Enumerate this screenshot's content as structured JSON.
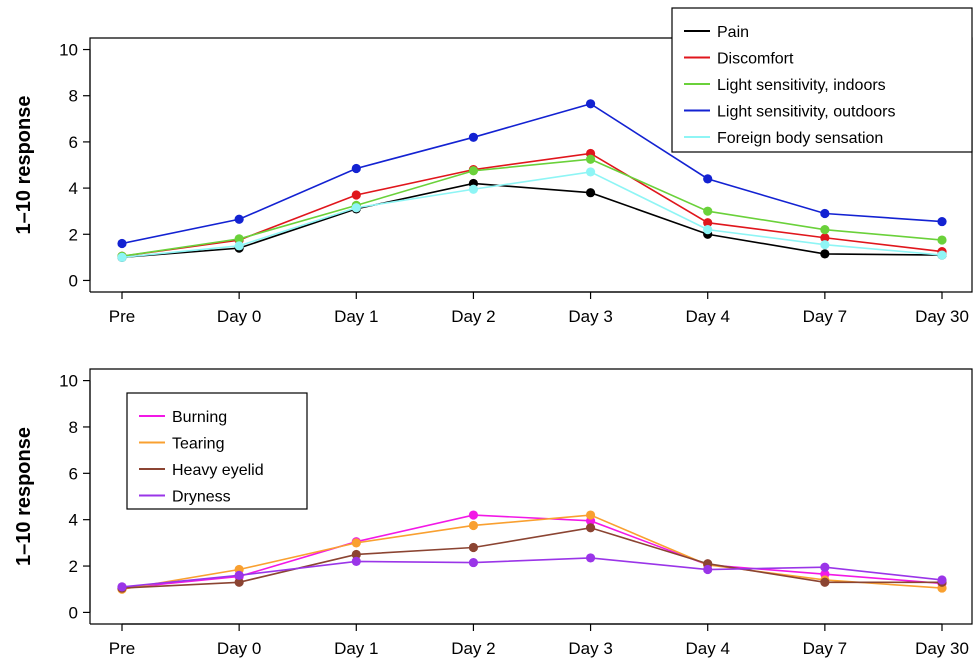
{
  "chart_data": [
    {
      "type": "line",
      "title": "",
      "xlabel": "",
      "ylabel": "1–10 response",
      "categories": [
        "Pre",
        "Day 0",
        "Day 1",
        "Day 2",
        "Day 3",
        "Day 4",
        "Day 7",
        "Day 30"
      ],
      "yticks": [
        0,
        2,
        4,
        6,
        8,
        10
      ],
      "ylim": [
        -0.5,
        10.5
      ],
      "grid": false,
      "legend_position": "top-right",
      "series": [
        {
          "name": "Pain",
          "color": "#000000",
          "values": [
            1.0,
            1.4,
            3.1,
            4.2,
            3.8,
            2.0,
            1.15,
            1.1
          ]
        },
        {
          "name": "Discomfort",
          "color": "#e0161c",
          "values": [
            1.05,
            1.75,
            3.7,
            4.8,
            5.5,
            2.5,
            1.85,
            1.25
          ]
        },
        {
          "name": "Light sensitivity, indoors",
          "color": "#6ad13a",
          "values": [
            1.05,
            1.8,
            3.25,
            4.75,
            5.25,
            3.0,
            2.2,
            1.75
          ]
        },
        {
          "name": "Light sensitivity, outdoors",
          "color": "#1322d2",
          "values": [
            1.6,
            2.65,
            4.85,
            6.2,
            7.65,
            4.4,
            2.9,
            2.55
          ]
        },
        {
          "name": "Foreign body sensation",
          "color": "#8ef5f5",
          "values": [
            1.0,
            1.5,
            3.15,
            3.95,
            4.7,
            2.2,
            1.55,
            1.1
          ]
        }
      ]
    },
    {
      "type": "line",
      "title": "",
      "xlabel": "",
      "ylabel": "1–10 response",
      "categories": [
        "Pre",
        "Day 0",
        "Day 1",
        "Day 2",
        "Day 3",
        "Day 4",
        "Day 7",
        "Day 30"
      ],
      "yticks": [
        0,
        2,
        4,
        6,
        8,
        10
      ],
      "ylim": [
        -0.5,
        10.5
      ],
      "grid": false,
      "legend_position": "top-left",
      "series": [
        {
          "name": "Burning",
          "color": "#f218e6",
          "values": [
            1.05,
            1.55,
            3.05,
            4.2,
            3.95,
            2.05,
            1.65,
            1.25
          ]
        },
        {
          "name": "Tearing",
          "color": "#f9a030",
          "values": [
            1.0,
            1.85,
            3.0,
            3.75,
            4.2,
            2.05,
            1.4,
            1.05
          ]
        },
        {
          "name": "Heavy eyelid",
          "color": "#8b4432",
          "values": [
            1.05,
            1.3,
            2.5,
            2.8,
            3.65,
            2.1,
            1.3,
            1.3
          ]
        },
        {
          "name": "Dryness",
          "color": "#9a35e8",
          "values": [
            1.1,
            1.6,
            2.2,
            2.15,
            2.35,
            1.85,
            1.95,
            1.4
          ]
        }
      ]
    }
  ]
}
